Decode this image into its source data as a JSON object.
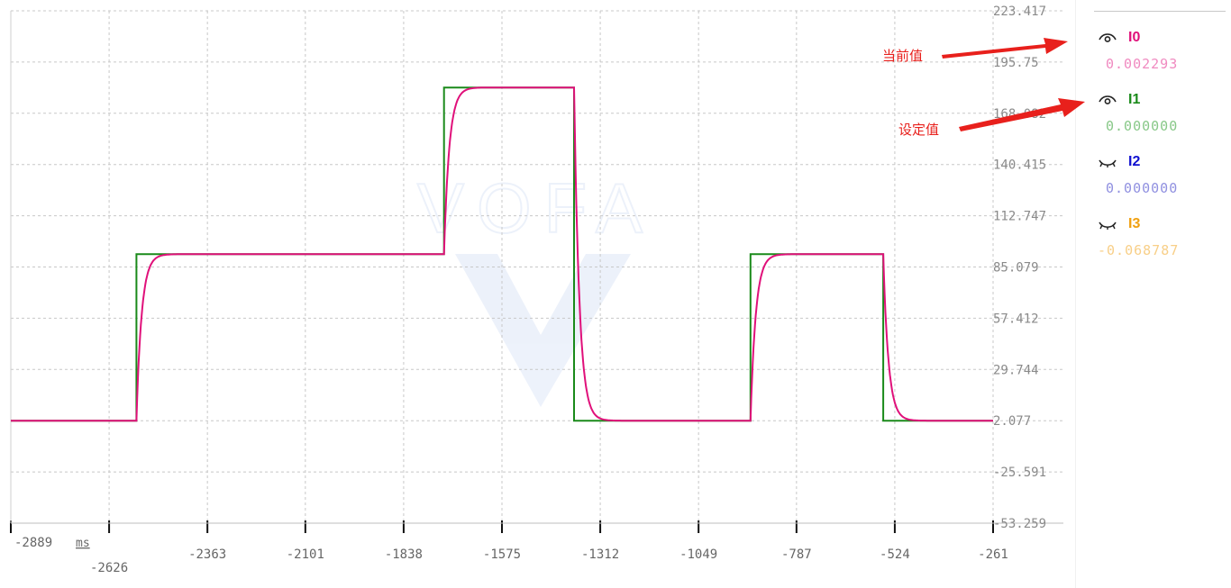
{
  "chart_data": {
    "type": "line",
    "x_unit": "ms",
    "x_ticks": [
      "-2889",
      "-2626",
      "-2363",
      "-2101",
      "-1838",
      "-1575",
      "-1312",
      "-1049",
      "-787",
      "-524",
      "-261"
    ],
    "y_ticks": [
      "223.417",
      "195.75",
      "168.082",
      "140.415",
      "112.747",
      "85.079",
      "57.412",
      "29.744",
      "2.077",
      "-25.591",
      "-53.259"
    ],
    "xlim": [
      -2889,
      -261
    ],
    "ylim": [
      -53.259,
      223.417
    ],
    "grid": true,
    "series": [
      {
        "name": "I1",
        "color": "#1a8a1a",
        "style": "step",
        "x": [
          -2889,
          -2553,
          -2553,
          -1730,
          -1730,
          -1382,
          -1382,
          -910,
          -910,
          -555,
          -555,
          -261
        ],
        "y": [
          2.077,
          2.077,
          92.0,
          92.0,
          182.0,
          182.0,
          2.077,
          2.077,
          92.0,
          92.0,
          2.077,
          2.077
        ]
      },
      {
        "name": "I0",
        "color": "#e0107a",
        "style": "first-order-response",
        "tau_ms": 14,
        "x_steps": [
          -2889,
          -2553,
          -1730,
          -1382,
          -910,
          -555
        ],
        "y_targets": [
          2.077,
          92.0,
          182.0,
          2.077,
          92.0,
          2.077
        ],
        "x_end": -261
      }
    ]
  },
  "legend": {
    "channels": [
      {
        "name": "I0",
        "value": "0.002293",
        "color": "#e0107a",
        "value_color": "#f08ac0",
        "icon": "eye-open-icon"
      },
      {
        "name": "I1",
        "value": "0.000000",
        "color": "#1a8a1a",
        "value_color": "#88c888",
        "icon": "eye-open-icon"
      },
      {
        "name": "I2",
        "value": "0.000000",
        "color": "#1010d0",
        "value_color": "#9090e0",
        "icon": "eye-closed-icon"
      },
      {
        "name": "I3",
        "value": "-0.068787",
        "color": "#f0a010",
        "value_color": "#f8cf88",
        "icon": "eye-closed-icon"
      }
    ]
  },
  "annotations": {
    "current_value": "当前值",
    "set_value": "设定值",
    "color": "#e8201c"
  },
  "watermark": {
    "text": "VOFA"
  }
}
